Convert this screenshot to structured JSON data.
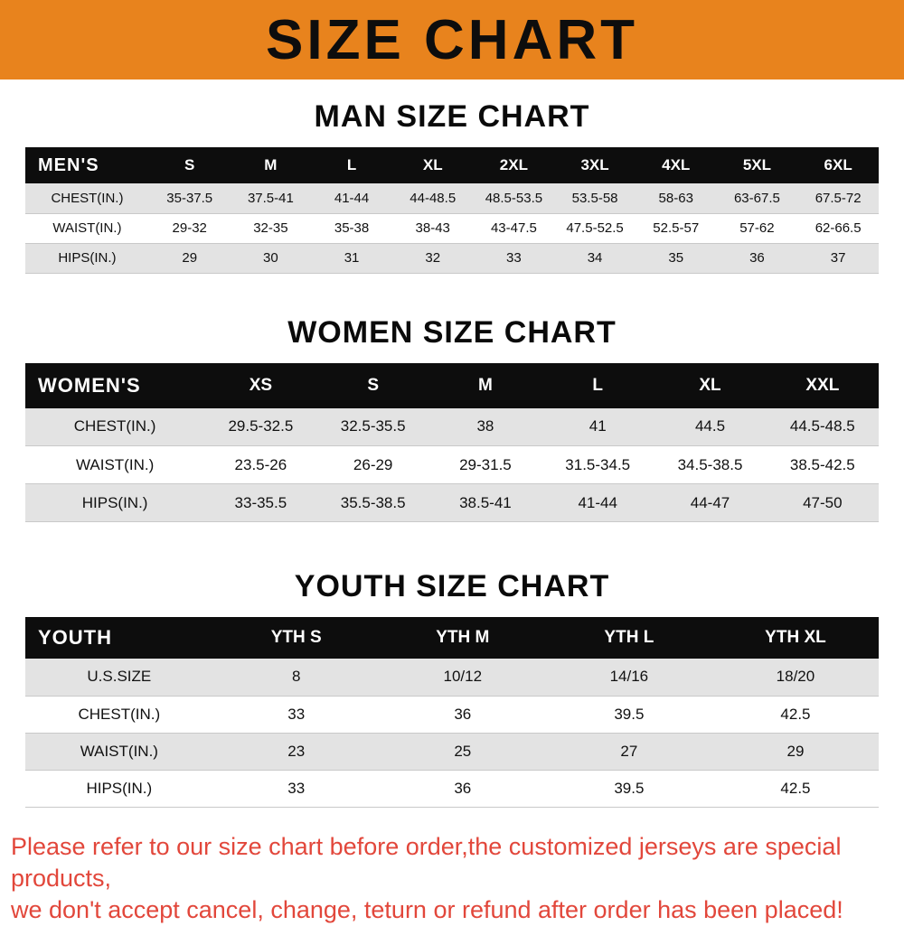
{
  "banner": {
    "title": "SIZE CHART"
  },
  "colors": {
    "banner_orange": "#E8831D",
    "table_header_black": "#0d0d0d",
    "row_gray": "#e3e3e3",
    "footer_red": "#E2473B"
  },
  "men": {
    "heading": "MAN SIZE CHART",
    "table": {
      "header": [
        "MEN'S",
        "S",
        "M",
        "L",
        "XL",
        "2XL",
        "3XL",
        "4XL",
        "5XL",
        "6XL"
      ],
      "rows": [
        {
          "label": "CHEST(IN.)",
          "values": [
            "35-37.5",
            "37.5-41",
            "41-44",
            "44-48.5",
            "48.5-53.5",
            "53.5-58",
            "58-63",
            "63-67.5",
            "67.5-72"
          ]
        },
        {
          "label": "WAIST(IN.)",
          "values": [
            "29-32",
            "32-35",
            "35-38",
            "38-43",
            "43-47.5",
            "47.5-52.5",
            "52.5-57",
            "57-62",
            "62-66.5"
          ]
        },
        {
          "label": "HIPS(IN.)",
          "values": [
            "29",
            "30",
            "31",
            "32",
            "33",
            "34",
            "35",
            "36",
            "37"
          ]
        }
      ]
    }
  },
  "women": {
    "heading": "WOMEN SIZE CHART",
    "table": {
      "header": [
        "WOMEN'S",
        "XS",
        "S",
        "M",
        "L",
        "XL",
        "XXL"
      ],
      "rows": [
        {
          "label": "CHEST(IN.)",
          "values": [
            "29.5-32.5",
            "32.5-35.5",
            "38",
            "41",
            "44.5",
            "44.5-48.5"
          ]
        },
        {
          "label": "WAIST(IN.)",
          "values": [
            "23.5-26",
            "26-29",
            "29-31.5",
            "31.5-34.5",
            "34.5-38.5",
            "38.5-42.5"
          ]
        },
        {
          "label": "HIPS(IN.)",
          "values": [
            "33-35.5",
            "35.5-38.5",
            "38.5-41",
            "41-44",
            "44-47",
            "47-50"
          ]
        }
      ]
    }
  },
  "youth": {
    "heading": "YOUTH SIZE CHART",
    "table": {
      "header": [
        "YOUTH",
        "YTH S",
        "YTH M",
        "YTH L",
        "YTH XL"
      ],
      "rows": [
        {
          "label": "U.S.SIZE",
          "values": [
            "8",
            "10/12",
            "14/16",
            "18/20"
          ]
        },
        {
          "label": "CHEST(IN.)",
          "values": [
            "33",
            "36",
            "39.5",
            "42.5"
          ]
        },
        {
          "label": "WAIST(IN.)",
          "values": [
            "23",
            "25",
            "27",
            "29"
          ]
        },
        {
          "label": "HIPS(IN.)",
          "values": [
            "33",
            "36",
            "39.5",
            "42.5"
          ]
        }
      ]
    }
  },
  "footer": {
    "line1": "Please refer to our size chart before order,the customized jerseys are special products,",
    "line2": "we don't accept cancel, change, teturn or refund after order has been placed!"
  }
}
